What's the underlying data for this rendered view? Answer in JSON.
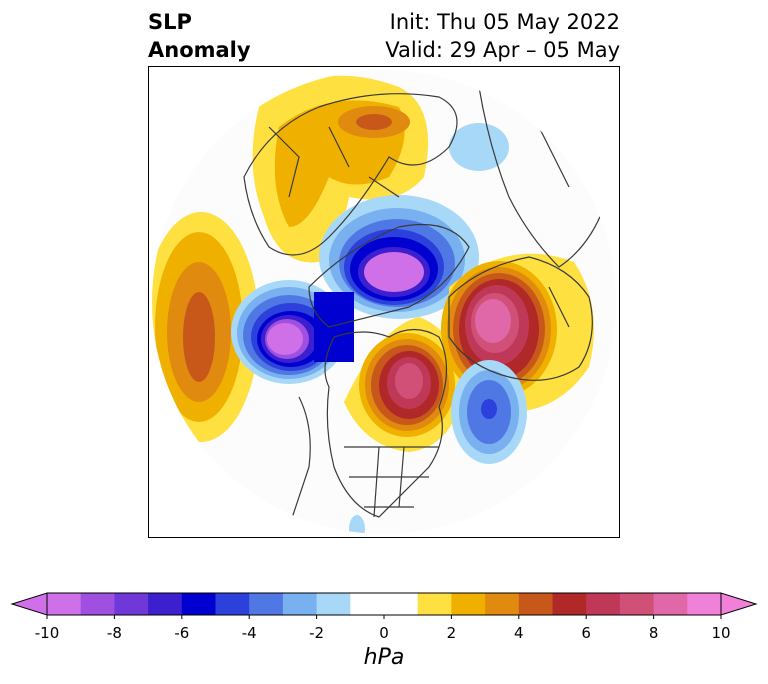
{
  "header": {
    "title_line1": "SLP",
    "title_line2": "Anomaly",
    "init_line": "Init: Thu 05 May 2022",
    "valid_line": "Valid: 29 Apr – 05 May"
  },
  "colorbar": {
    "units": "hPa",
    "tick_labels": [
      "-10",
      "-8",
      "-6",
      "-4",
      "-2",
      "0",
      "2",
      "4",
      "6",
      "8",
      "10"
    ],
    "levels": [
      -10,
      -9,
      -8,
      -7,
      -6,
      -5,
      -4,
      -3,
      -2,
      -1,
      1,
      2,
      3,
      4,
      5,
      6,
      7,
      8,
      9,
      10
    ],
    "colors": [
      "#d070e8",
      "#a050e0",
      "#7038d8",
      "#3c20d0",
      "#0000d0",
      "#2c40dc",
      "#5078e4",
      "#78b0f0",
      "#a8d8f8",
      "#ffffff",
      "#fee040",
      "#f0b000",
      "#e08a10",
      "#c8581a",
      "#b02828",
      "#c03858",
      "#d05078",
      "#e068a8",
      "#f080d8"
    ],
    "extend": "both",
    "min_color": "#d070e8",
    "max_color": "#f080d8"
  },
  "map": {
    "projection": "north polar stereographic",
    "field": "sea level pressure anomaly"
  }
}
